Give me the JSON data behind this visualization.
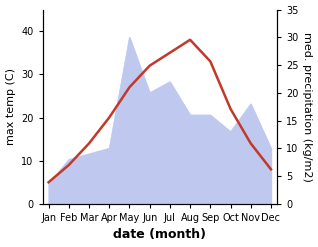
{
  "months": [
    "Jan",
    "Feb",
    "Mar",
    "Apr",
    "May",
    "Jun",
    "Jul",
    "Aug",
    "Sep",
    "Oct",
    "Nov",
    "Dec"
  ],
  "month_positions": [
    0,
    1,
    2,
    3,
    4,
    5,
    6,
    7,
    8,
    9,
    10,
    11
  ],
  "max_temp": [
    5,
    9,
    14,
    20,
    27,
    32,
    35,
    38,
    33,
    22,
    14,
    8
  ],
  "precipitation": [
    3.5,
    8,
    9,
    10,
    30,
    20,
    22,
    16,
    16,
    13,
    18,
    10
  ],
  "temp_color": "#c0392b",
  "precip_fill_color": "#bfc9f0",
  "ylabel_left": "max temp (C)",
  "ylabel_right": "med. precipitation (kg/m2)",
  "xlabel": "date (month)",
  "ylim_left": [
    0,
    45
  ],
  "ylim_right": [
    0,
    35
  ],
  "yticks_left": [
    0,
    10,
    20,
    30,
    40
  ],
  "yticks_right": [
    0,
    5,
    10,
    15,
    20,
    25,
    30,
    35
  ],
  "label_fontsize": 8,
  "tick_fontsize": 7,
  "xlabel_fontsize": 9
}
